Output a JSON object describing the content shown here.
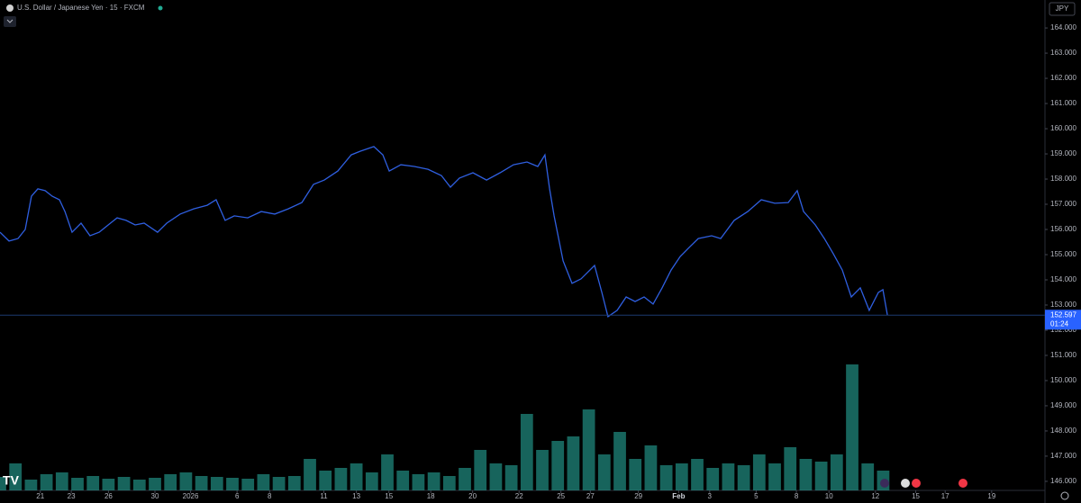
{
  "chart_data": {
    "type": "line",
    "title": "U.S. Dollar / Japanese Yen · 15 · FXCM",
    "currency_button": "JPY",
    "color": "#2f5fe0",
    "x": [
      0,
      0.58,
      1.16,
      1.63,
      2.03,
      2.44,
      2.91,
      3.37,
      3.84,
      4.19,
      4.65,
      5.23,
      5.81,
      6.4,
      6.98,
      7.56,
      8.14,
      8.72,
      9.3,
      10.17,
      10.76,
      11.63,
      12.5,
      13.37,
      13.95,
      14.53,
      15.12,
      15.99,
      16.86,
      17.73,
      18.6,
      19.48,
      20.23,
      20.93,
      21.8,
      22.67,
      23.26,
      24.13,
      24.71,
      25.12,
      25.87,
      26.74,
      27.62,
      28.49,
      29.07,
      29.65,
      30.52,
      31.4,
      32.27,
      33.14,
      34.01,
      34.71,
      35.17,
      35.47,
      35.76,
      36.34,
      36.92,
      37.5,
      38.37,
      38.84,
      39.24,
      39.83,
      40.41,
      40.99,
      41.57,
      42.15,
      42.73,
      43.31,
      43.9,
      44.48,
      45.06,
      45.93,
      46.51,
      47.38,
      48.26,
      49.13,
      50,
      50.87,
      51.45,
      51.86,
      52.62,
      53.2,
      53.78,
      54.36,
      54.94,
      55.52,
      56.1,
      56.69,
      56.98,
      57.27
    ],
    "values": [
      155.89,
      155.54,
      155.64,
      156,
      157.32,
      157.61,
      157.54,
      157.32,
      157.18,
      156.71,
      155.89,
      156.25,
      155.75,
      155.89,
      156.18,
      156.46,
      156.36,
      156.18,
      156.25,
      155.89,
      156.25,
      156.61,
      156.82,
      156.96,
      157.18,
      156.36,
      156.54,
      156.46,
      156.71,
      156.61,
      156.82,
      157.07,
      157.79,
      157.96,
      158.32,
      158.96,
      159.11,
      159.29,
      158.96,
      158.32,
      158.57,
      158.5,
      158.39,
      158.14,
      157.68,
      158.04,
      158.25,
      157.96,
      158.25,
      158.57,
      158.68,
      158.5,
      158.96,
      157.61,
      156.54,
      154.75,
      153.86,
      154.04,
      154.57,
      153.5,
      152.54,
      152.79,
      153.32,
      153.14,
      153.32,
      153.04,
      153.68,
      154.39,
      154.93,
      155.29,
      155.64,
      155.75,
      155.64,
      156.36,
      156.71,
      157.18,
      157.04,
      157.07,
      157.54,
      156.71,
      156.18,
      155.64,
      155.04,
      154.39,
      153.32,
      153.68,
      152.79,
      153.5,
      153.61,
      152.597
    ],
    "last_price": {
      "value": 152.597,
      "label": "152.597"
    },
    "countdown": "01:24",
    "volume": {
      "color": "#26a69a",
      "x": [
        0,
        1,
        2,
        3,
        4,
        5,
        6,
        7,
        8,
        9,
        10,
        11,
        12,
        13,
        14,
        15,
        16,
        17,
        18,
        19,
        20,
        21,
        22,
        23,
        24,
        25,
        26,
        27,
        28,
        29,
        30,
        31,
        32,
        33,
        34,
        35,
        36,
        37,
        38,
        39,
        40,
        41,
        42,
        43,
        44,
        45,
        46,
        47,
        48,
        49,
        50,
        51,
        52,
        53,
        54,
        55,
        56,
        57
      ],
      "values": [
        15,
        30,
        12,
        18,
        20,
        14,
        16,
        13,
        15,
        12,
        14,
        18,
        20,
        16,
        15,
        14,
        13,
        18,
        15,
        16,
        35,
        22,
        25,
        30,
        20,
        40,
        22,
        18,
        20,
        16,
        25,
        45,
        30,
        28,
        85,
        45,
        55,
        60,
        90,
        40,
        65,
        35,
        50,
        28,
        30,
        35,
        25,
        30,
        28,
        40,
        30,
        48,
        35,
        32,
        40,
        140,
        30,
        22
      ]
    },
    "xlim": [
      0,
      67.44
    ],
    "xticks": [
      {
        "value": 2.6,
        "label": "21"
      },
      {
        "value": 4.6,
        "label": "23"
      },
      {
        "value": 7.0,
        "label": "26"
      },
      {
        "value": 10.0,
        "label": "30"
      },
      {
        "value": 12.3,
        "label": "2026"
      },
      {
        "value": 15.3,
        "label": "6"
      },
      {
        "value": 17.4,
        "label": "8"
      },
      {
        "value": 20.9,
        "label": "11"
      },
      {
        "value": 23.0,
        "label": "13"
      },
      {
        "value": 25.1,
        "label": "15"
      },
      {
        "value": 27.8,
        "label": "18"
      },
      {
        "value": 30.5,
        "label": "20"
      },
      {
        "value": 33.5,
        "label": "22"
      },
      {
        "value": 36.2,
        "label": "25"
      },
      {
        "value": 38.1,
        "label": "27"
      },
      {
        "value": 41.2,
        "label": "29"
      },
      {
        "value": 43.8,
        "label": "Feb"
      },
      {
        "value": 45.8,
        "label": "3"
      },
      {
        "value": 48.8,
        "label": "5"
      },
      {
        "value": 51.4,
        "label": "8"
      },
      {
        "value": 53.5,
        "label": "10"
      },
      {
        "value": 56.5,
        "label": "12"
      },
      {
        "value": 59.1,
        "label": "15"
      },
      {
        "value": 61.0,
        "label": "17"
      },
      {
        "value": 64.0,
        "label": "19"
      }
    ],
    "ylim": [
      145.64,
      165.11
    ],
    "yticks": [
      {
        "value": 146,
        "label": "146.000"
      },
      {
        "value": 147,
        "label": "147.000"
      },
      {
        "value": 148,
        "label": "148.000"
      },
      {
        "value": 149,
        "label": "149.000"
      },
      {
        "value": 150,
        "label": "150.000"
      },
      {
        "value": 151,
        "label": "151.000"
      },
      {
        "value": 152,
        "label": "152.000"
      },
      {
        "value": 153,
        "label": "153.000"
      },
      {
        "value": 154,
        "label": "154.000"
      },
      {
        "value": 155,
        "label": "155.000"
      },
      {
        "value": 156,
        "label": "156.000"
      },
      {
        "value": 157,
        "label": "157.000"
      },
      {
        "value": 158,
        "label": "158.000"
      },
      {
        "value": 159,
        "label": "159.000"
      },
      {
        "value": 160,
        "label": "160.000"
      },
      {
        "value": 161,
        "label": "161.000"
      },
      {
        "value": 162,
        "label": "162.000"
      },
      {
        "value": 163,
        "label": "163.000"
      },
      {
        "value": 164,
        "label": "164.000"
      }
    ]
  }
}
